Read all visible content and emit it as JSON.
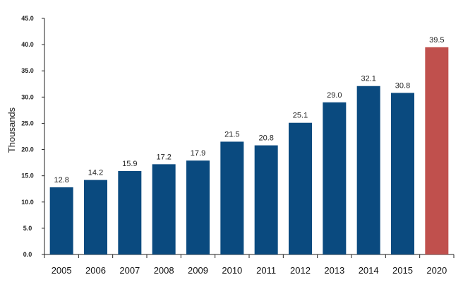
{
  "chart_data": {
    "type": "bar",
    "categories": [
      "2005",
      "2006",
      "2007",
      "2008",
      "2009",
      "2010",
      "2011",
      "2012",
      "2013",
      "2014",
      "2015",
      "2020"
    ],
    "values": [
      12.8,
      14.2,
      15.9,
      17.2,
      17.9,
      21.5,
      20.8,
      25.1,
      29.0,
      32.1,
      30.8,
      39.5
    ],
    "data_labels": [
      "12.8",
      "14.2",
      "15.9",
      "17.2",
      "17.9",
      "21.5",
      "20.8",
      "25.1",
      "29.0",
      "32.1",
      "30.8",
      "39.5"
    ],
    "title": "",
    "xlabel": "",
    "ylabel": "Thousands",
    "ylim": [
      0,
      45
    ],
    "yticks": [
      "0.0",
      "5.0",
      "10.0",
      "15.0",
      "20.0",
      "25.0",
      "30.0",
      "35.0",
      "40.0",
      "45.0"
    ],
    "grid": false,
    "legend": "none",
    "colors": {
      "default_bar": "#0a4a7f",
      "highlight_bar": "#c0504d",
      "axis": "#222222"
    },
    "highlight_categories": [
      "2020"
    ]
  }
}
